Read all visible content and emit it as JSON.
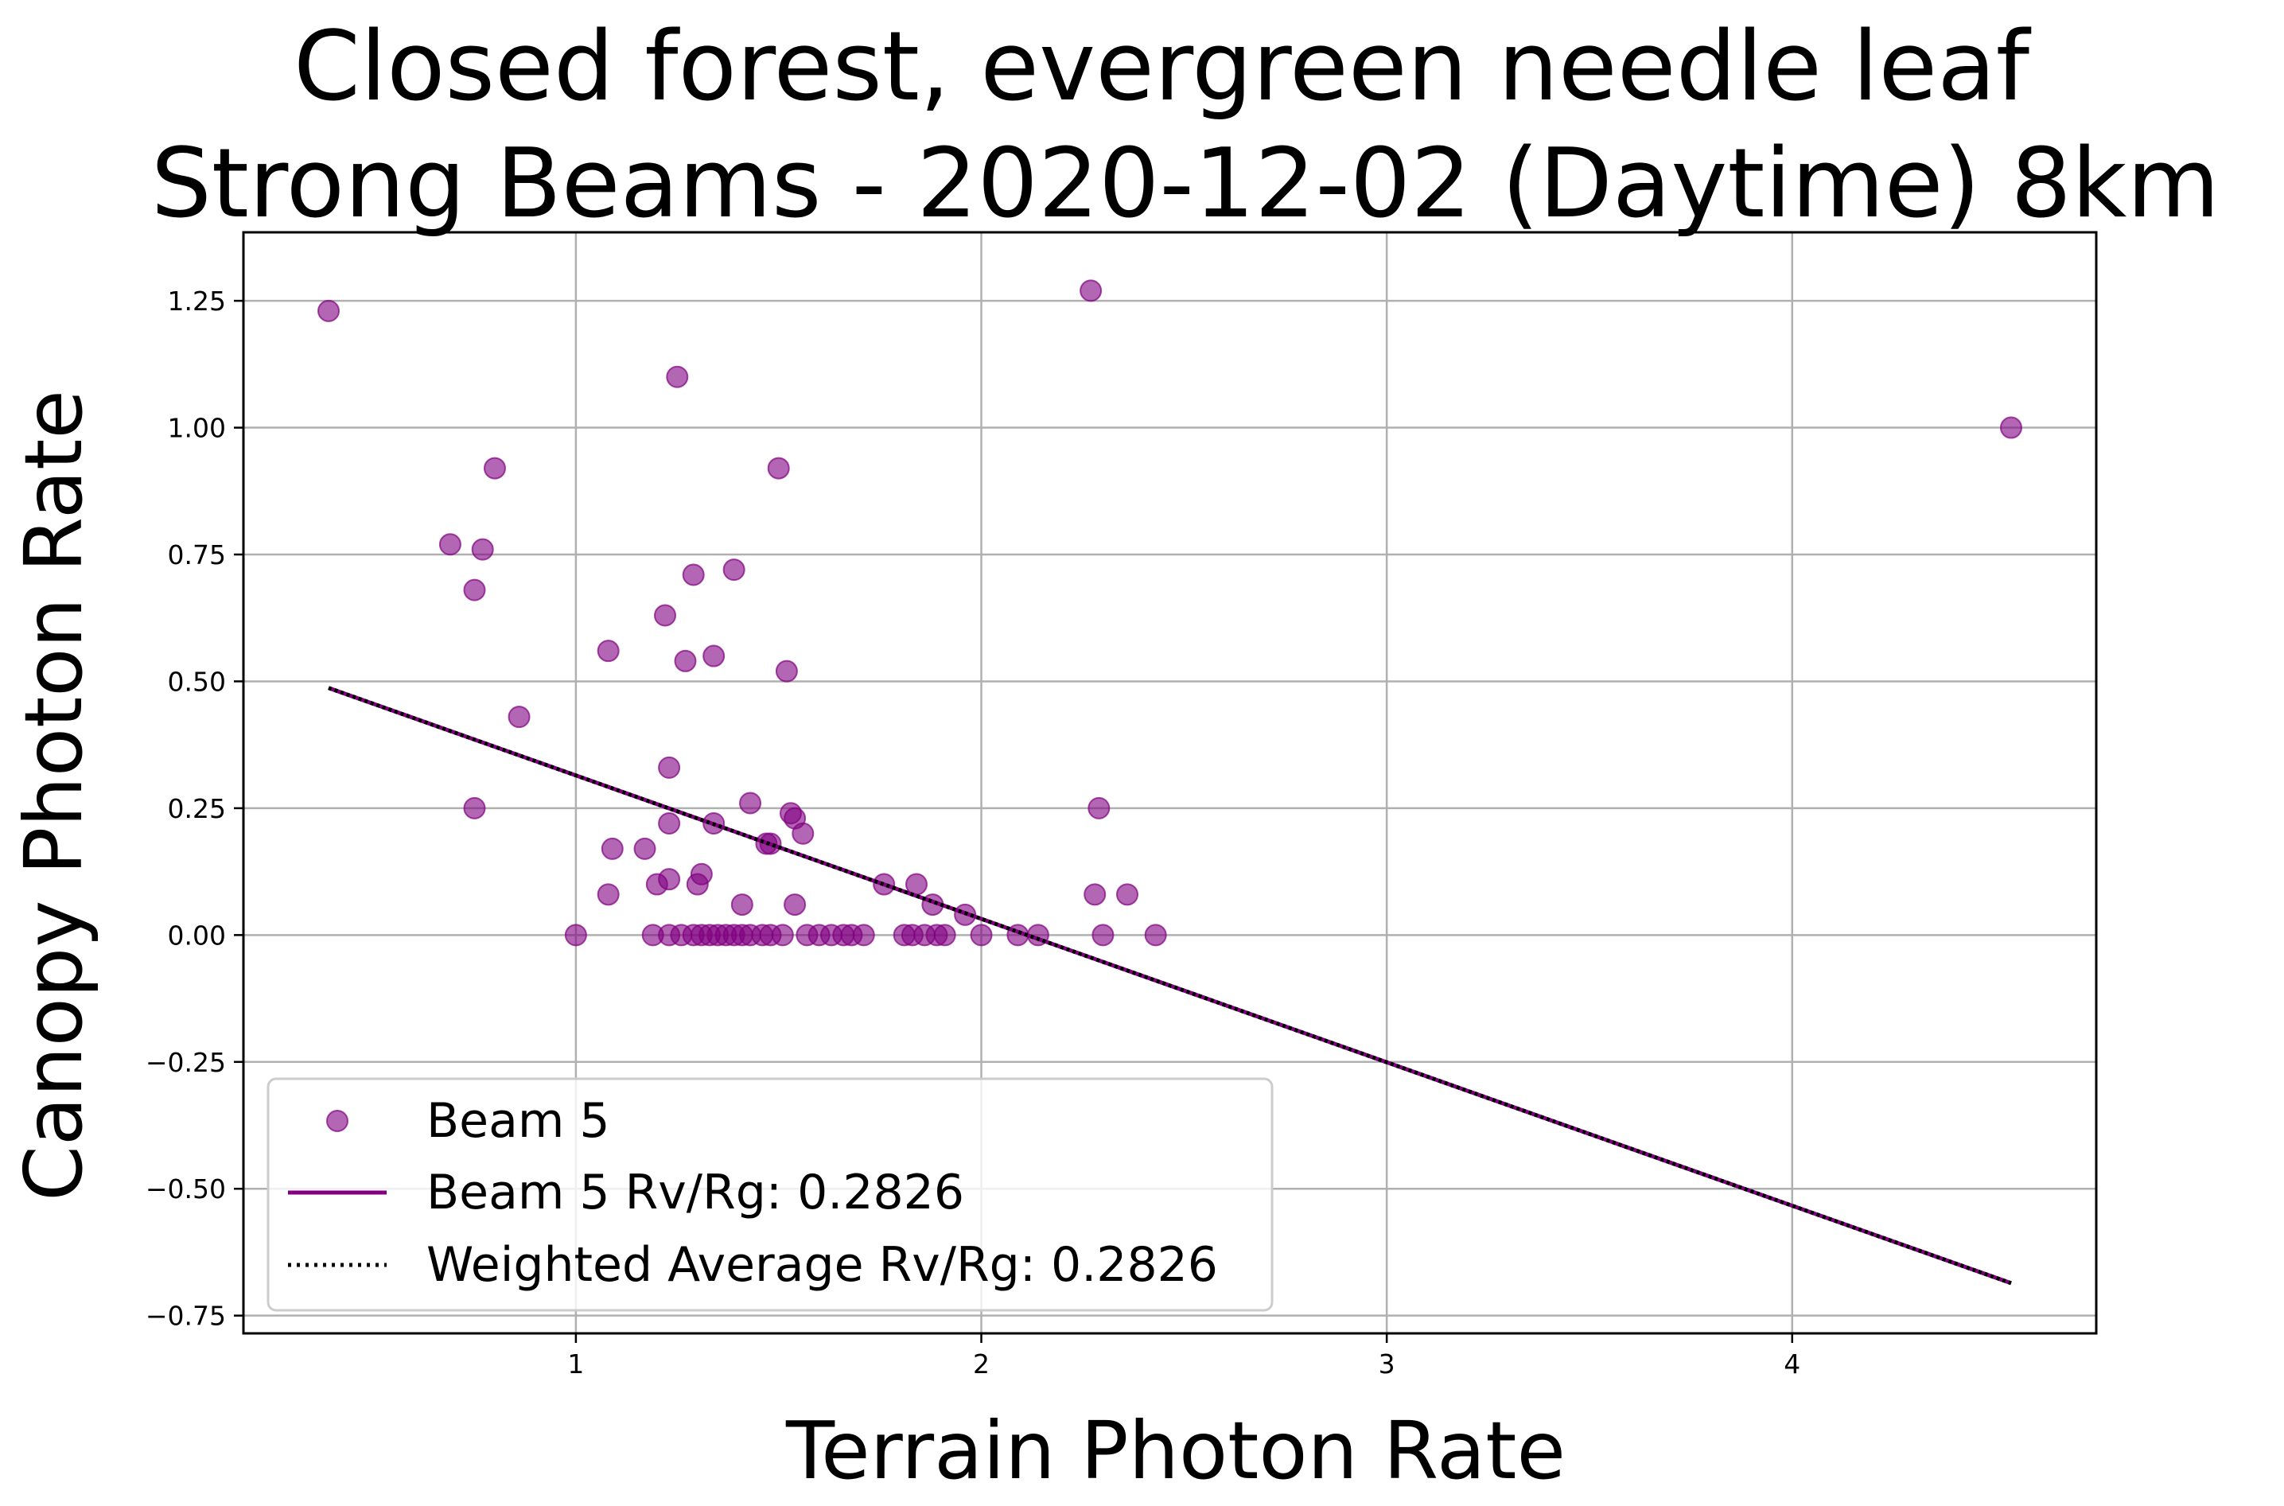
{
  "chart_data": {
    "type": "scatter",
    "title_line1": "Closed forest, evergreen needle leaf",
    "title_line2": "Strong Beams - 2020-12-02 (Daytime) 8km",
    "xlabel": "Terrain Photon Rate",
    "ylabel": "Canopy Photon Rate",
    "xlim": [
      0.18,
      4.75
    ],
    "ylim": [
      -0.785,
      1.385
    ],
    "xticks": [
      1,
      2,
      3,
      4
    ],
    "yticks": [
      -0.75,
      -0.5,
      -0.25,
      0.0,
      0.25,
      0.5,
      0.75,
      1.0,
      1.25
    ],
    "ytick_labels": [
      "−0.75",
      "−0.50",
      "−0.25",
      "0.00",
      "0.25",
      "0.50",
      "0.75",
      "1.00",
      "1.25"
    ],
    "grid": true,
    "legend_position": "lower-left",
    "colors": {
      "scatter": "#800080",
      "fit_line": "#800080",
      "weighted_line": "#000000"
    },
    "series": [
      {
        "name": "Beam 5",
        "kind": "scatter",
        "points": [
          [
            0.39,
            1.23
          ],
          [
            0.69,
            0.77
          ],
          [
            0.77,
            0.76
          ],
          [
            0.8,
            0.92
          ],
          [
            0.75,
            0.68
          ],
          [
            0.75,
            0.25
          ],
          [
            0.86,
            0.43
          ],
          [
            1.0,
            0.0
          ],
          [
            1.08,
            0.56
          ],
          [
            1.08,
            0.08
          ],
          [
            1.09,
            0.17
          ],
          [
            1.17,
            0.17
          ],
          [
            1.19,
            0.0
          ],
          [
            1.2,
            0.1
          ],
          [
            1.22,
            0.63
          ],
          [
            1.23,
            0.33
          ],
          [
            1.23,
            0.22
          ],
          [
            1.23,
            0.11
          ],
          [
            1.25,
            1.1
          ],
          [
            1.27,
            0.54
          ],
          [
            1.29,
            0.71
          ],
          [
            1.3,
            0.1
          ],
          [
            1.31,
            0.12
          ],
          [
            1.34,
            0.55
          ],
          [
            1.34,
            0.22
          ],
          [
            1.39,
            0.72
          ],
          [
            1.41,
            0.06
          ],
          [
            1.43,
            0.26
          ],
          [
            1.47,
            0.18
          ],
          [
            1.48,
            0.18
          ],
          [
            1.5,
            0.92
          ],
          [
            1.52,
            0.52
          ],
          [
            1.53,
            0.24
          ],
          [
            1.54,
            0.23
          ],
          [
            1.54,
            0.06
          ],
          [
            1.56,
            0.2
          ],
          [
            1.23,
            0.0
          ],
          [
            1.26,
            0.0
          ],
          [
            1.29,
            0.0
          ],
          [
            1.31,
            0.0
          ],
          [
            1.33,
            0.0
          ],
          [
            1.35,
            0.0
          ],
          [
            1.37,
            0.0
          ],
          [
            1.39,
            0.0
          ],
          [
            1.41,
            0.0
          ],
          [
            1.43,
            0.0
          ],
          [
            1.46,
            0.0
          ],
          [
            1.48,
            0.0
          ],
          [
            1.51,
            0.0
          ],
          [
            1.57,
            0.0
          ],
          [
            1.6,
            0.0
          ],
          [
            1.63,
            0.0
          ],
          [
            1.66,
            0.0
          ],
          [
            1.68,
            0.0
          ],
          [
            1.71,
            0.0
          ],
          [
            1.76,
            0.1
          ],
          [
            1.81,
            0.0
          ],
          [
            1.83,
            0.0
          ],
          [
            1.84,
            0.1
          ],
          [
            1.86,
            0.0
          ],
          [
            1.88,
            0.06
          ],
          [
            1.89,
            0.0
          ],
          [
            1.91,
            0.0
          ],
          [
            1.96,
            0.04
          ],
          [
            2.0,
            0.0
          ],
          [
            2.09,
            0.0
          ],
          [
            2.14,
            0.0
          ],
          [
            2.27,
            1.27
          ],
          [
            2.28,
            0.08
          ],
          [
            2.29,
            0.25
          ],
          [
            2.3,
            0.0
          ],
          [
            2.36,
            0.08
          ],
          [
            2.43,
            0.0
          ],
          [
            4.54,
            1.0
          ]
        ]
      },
      {
        "name": "Beam 5 Rv/Rg: 0.2826",
        "kind": "line",
        "x": [
          0.39,
          4.54
        ],
        "y": [
          0.487,
          -0.686
        ]
      },
      {
        "name": "Weighted Average Rv/Rg: 0.2826",
        "kind": "dotted-line",
        "x": [
          0.39,
          4.54
        ],
        "y": [
          0.487,
          -0.686
        ]
      }
    ]
  }
}
